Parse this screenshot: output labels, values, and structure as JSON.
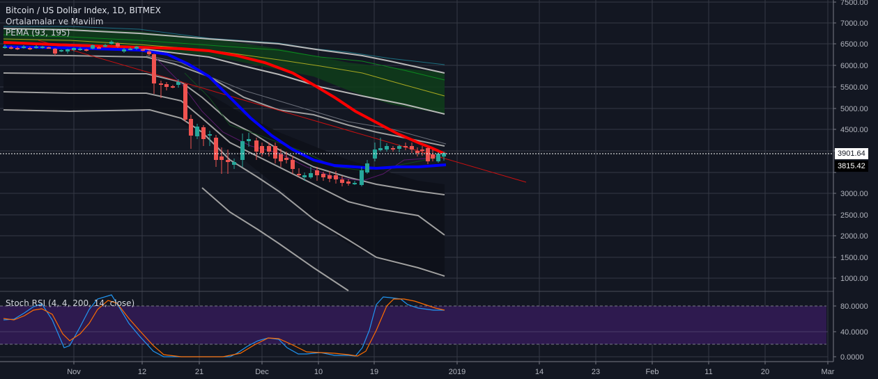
{
  "header": {
    "symbol_title": "Bitcoin / US Dollar Index, 1D, BITMEX",
    "indicator_1": "Ortalamalar ve Mavilim",
    "indicator_2": "PEMA (93, 195)"
  },
  "subpanel": {
    "title": "Stoch RSI (4, 4, 200, 14, close)"
  },
  "price_tags": {
    "current": "3901.64",
    "secondary": "3815.42"
  },
  "colors": {
    "background": "#131722",
    "grid": "#363a45",
    "up": "#26a69a",
    "down": "#ef5350",
    "pema_fast": "#0000ff",
    "pema_slow": "#ff0000",
    "stoch_k": "#2196f3",
    "stoch_d": "#ff6d00",
    "stoch_band": "#2e1a4f",
    "band_fill": "#0f3d1a"
  },
  "chart_data": [
    {
      "type": "line",
      "title": "Bitcoin / US Dollar Index, 1D, BITMEX",
      "subtype": "candlestick",
      "x_ticks": [
        "Nov",
        "12",
        "21",
        "Dec",
        "10",
        "19",
        "2019",
        "14",
        "23",
        "Feb",
        "11",
        "20",
        "Mar"
      ],
      "y_ticks": [
        "7500.00",
        "7000.00",
        "6500.00",
        "6000.00",
        "5500.00",
        "5000.00",
        "4500.00",
        "4000.00",
        "3500.00",
        "3000.00",
        "2500.00",
        "2000.00",
        "1500.00",
        "1000.00"
      ],
      "ylim": [
        900,
        7550
      ],
      "last_price": 3901.64,
      "marked_price": 3815.42,
      "legend": [
        "Ortalamalar ve Mavilim",
        "PEMA (93, 195)"
      ],
      "approx_close_path": [
        {
          "date": "Oct 23",
          "close": 6410
        },
        {
          "date": "Nov 1",
          "close": 6400
        },
        {
          "date": "Nov 7",
          "close": 6500
        },
        {
          "date": "Nov 13",
          "close": 6360
        },
        {
          "date": "Nov 14",
          "close": 5600
        },
        {
          "date": "Nov 19",
          "close": 4800
        },
        {
          "date": "Nov 21",
          "close": 4500
        },
        {
          "date": "Nov 25",
          "close": 3900
        },
        {
          "date": "Nov 28",
          "close": 4250
        },
        {
          "date": "Dec 6",
          "close": 3500
        },
        {
          "date": "Dec 14",
          "close": 3200
        },
        {
          "date": "Dec 16",
          "close": 3250
        },
        {
          "date": "Dec 18",
          "close": 3700
        },
        {
          "date": "Dec 20",
          "close": 4100
        },
        {
          "date": "Dec 24",
          "close": 4050
        },
        {
          "date": "Dec 28",
          "close": 3900
        }
      ],
      "series": [
        {
          "name": "PEMA fast (blue)",
          "values_at_dates": {
            "Oct 23": 6420,
            "Nov 13": 6350,
            "Nov 21": 5800,
            "Dec 1": 4700,
            "Dec 10": 3950,
            "Dec 19": 3700,
            "Dec 29": 3700
          }
        },
        {
          "name": "PEMA slow (red)",
          "values_at_dates": {
            "Oct 23": 6560,
            "Nov 13": 6430,
            "Nov 21": 6380,
            "Dec 1": 6100,
            "Dec 10": 5400,
            "Dec 19": 4500,
            "Dec 29": 3950
          }
        },
        {
          "name": "Upper band top",
          "values_at_dates": {
            "Oct 23": 7020,
            "Dec 29": 5820
          }
        },
        {
          "name": "Upper band bottom",
          "values_at_dates": {
            "Oct 23": 6580,
            "Dec 29": 4860
          }
        },
        {
          "name": "Trendline (red)",
          "values_at_dates": {
            "Nov 1": 6700,
            "Feb 1": 3250
          }
        }
      ]
    },
    {
      "type": "line",
      "title": "Stoch RSI (4, 4, 200, 14, close)",
      "y_ticks": [
        "80.0000",
        "40.0000",
        "0.0000"
      ],
      "ylim": [
        0,
        100
      ],
      "bands": {
        "upper": 80,
        "lower": 20
      },
      "series": [
        {
          "name": "K",
          "values": [
            60,
            60,
            70,
            78,
            75,
            30,
            20,
            45,
            60,
            80,
            95,
            85,
            40,
            15,
            5,
            0,
            2,
            5,
            2,
            2,
            20,
            35,
            35,
            20,
            8,
            10,
            12,
            4,
            5,
            70,
            95,
            92,
            88,
            75
          ]
        },
        {
          "name": "D",
          "values": [
            62,
            60,
            66,
            74,
            75,
            50,
            25,
            30,
            55,
            75,
            88,
            88,
            60,
            25,
            8,
            2,
            2,
            3,
            3,
            3,
            15,
            28,
            32,
            28,
            12,
            10,
            10,
            8,
            4,
            55,
            90,
            94,
            90,
            76
          ]
        }
      ]
    }
  ]
}
